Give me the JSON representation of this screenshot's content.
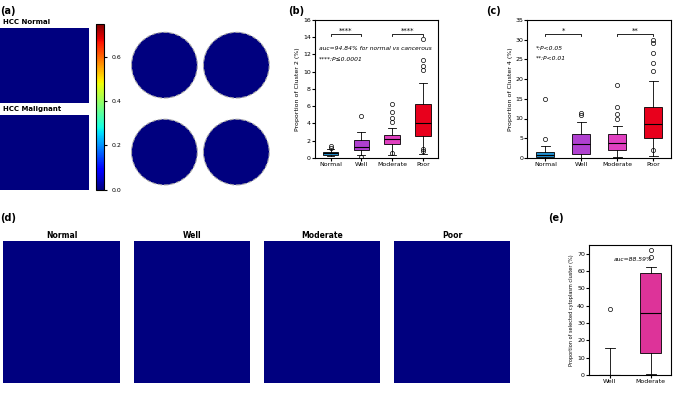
{
  "panel_labels": [
    "(a)",
    "(b)",
    "(c)",
    "(d)",
    "(e)"
  ],
  "panel_a": {
    "titles": [
      "HCC Normal",
      "HCC Malignant"
    ],
    "colorbar": {
      "range": [
        0,
        0.75
      ],
      "ticks": [
        {
          "value": 0,
          "label": "0.0"
        },
        0.2,
        0.4,
        0.6
      ]
    }
  },
  "panel_d": {
    "titles": [
      "Normal",
      "Well",
      "Moderate",
      "Poor"
    ]
  },
  "chart_data": [
    {
      "type": "box",
      "ylabel": "Proportion of Cluster 2 (%)",
      "categories": [
        "Normal",
        "Well",
        "Moderate",
        "Poor"
      ],
      "colors": [
        "#1f8fd0",
        "#b040d0",
        "#e040c0",
        "#e8001c"
      ],
      "boxes": [
        {
          "whislo": 0.2,
          "q1": 0.4,
          "med": 0.55,
          "q3": 0.7,
          "whishi": 1.0,
          "fliers": [
            1.2,
            1.4
          ]
        },
        {
          "whislo": 0.3,
          "q1": 0.9,
          "med": 1.3,
          "q3": 2.1,
          "whishi": 3.0,
          "fliers": [
            4.9,
            0.1
          ]
        },
        {
          "whislo": 0.4,
          "q1": 1.6,
          "med": 2.2,
          "q3": 2.7,
          "whishi": 3.5,
          "fliers": [
            4.2,
            4.6,
            5.3,
            6.3,
            0.6
          ]
        },
        {
          "whislo": 0.5,
          "q1": 2.6,
          "med": 4.0,
          "q3": 6.2,
          "whishi": 8.7,
          "fliers": [
            10.2,
            10.6,
            11.3,
            13.8,
            0.8,
            1.0
          ]
        }
      ],
      "ylim": [
        0,
        16
      ],
      "yticks": [
        0,
        2,
        4,
        6,
        8,
        10,
        12,
        14,
        16
      ],
      "significance": [
        {
          "pair": [
            "Normal",
            "Well"
          ],
          "label": "****"
        },
        {
          "pair": [
            "Moderate",
            "Poor"
          ],
          "label": "****"
        }
      ],
      "annotations": [
        "auc=94.84% for normal vs cancerous",
        "****:P≤0.0001"
      ]
    },
    {
      "type": "box",
      "ylabel": "Proportion of Cluster 4 (%)",
      "categories": [
        "Normal",
        "Well",
        "Moderate",
        "Poor"
      ],
      "colors": [
        "#1f8fd0",
        "#b040d0",
        "#e040c0",
        "#e8001c"
      ],
      "boxes": [
        {
          "whislo": 0,
          "q1": 0.3,
          "med": 0.7,
          "q3": 1.5,
          "whishi": 3,
          "fliers": [
            4.8,
            15
          ]
        },
        {
          "whislo": 0,
          "q1": 1,
          "med": 3.5,
          "q3": 6,
          "whishi": 9,
          "fliers": [
            11,
            11.5
          ]
        },
        {
          "whislo": 0.3,
          "q1": 2,
          "med": 3.8,
          "q3": 6.2,
          "whishi": 8,
          "fliers": [
            10,
            11.2,
            13,
            18.5
          ]
        },
        {
          "whislo": 0.5,
          "q1": 5,
          "med": 8.5,
          "q3": 13,
          "whishi": 19.5,
          "fliers": [
            22,
            24,
            26.5,
            29,
            30,
            2
          ]
        }
      ],
      "ylim": [
        0,
        35
      ],
      "yticks": [
        0,
        5,
        10,
        15,
        20,
        25,
        30,
        35
      ],
      "significance": [
        {
          "pair": [
            "Normal",
            "Well"
          ],
          "label": "*"
        },
        {
          "pair": [
            "Moderate",
            "Poor"
          ],
          "label": "**"
        }
      ],
      "annotations": [
        "*:P<0.05",
        "**:P<0.01"
      ]
    },
    {
      "type": "box",
      "ylabel": "Proportion of selected cytoplasm cluster (%)",
      "categories": [
        "Well",
        "Moderate"
      ],
      "colors": [
        "#b040d0",
        "#dd3399"
      ],
      "boxes": [
        {
          "whislo": 0,
          "q1": 0,
          "med": 0,
          "q3": 0,
          "whishi": 15.5,
          "fliers": [
            38
          ]
        },
        {
          "whislo": 1,
          "q1": 13,
          "med": 36,
          "q3": 59,
          "whishi": 62,
          "fliers": [
            72,
            68
          ]
        }
      ],
      "ylim": [
        0,
        75
      ],
      "yticks": [
        0,
        10,
        20,
        30,
        40,
        50,
        60,
        70
      ],
      "annotations": [
        "auc=88.59%"
      ]
    }
  ]
}
